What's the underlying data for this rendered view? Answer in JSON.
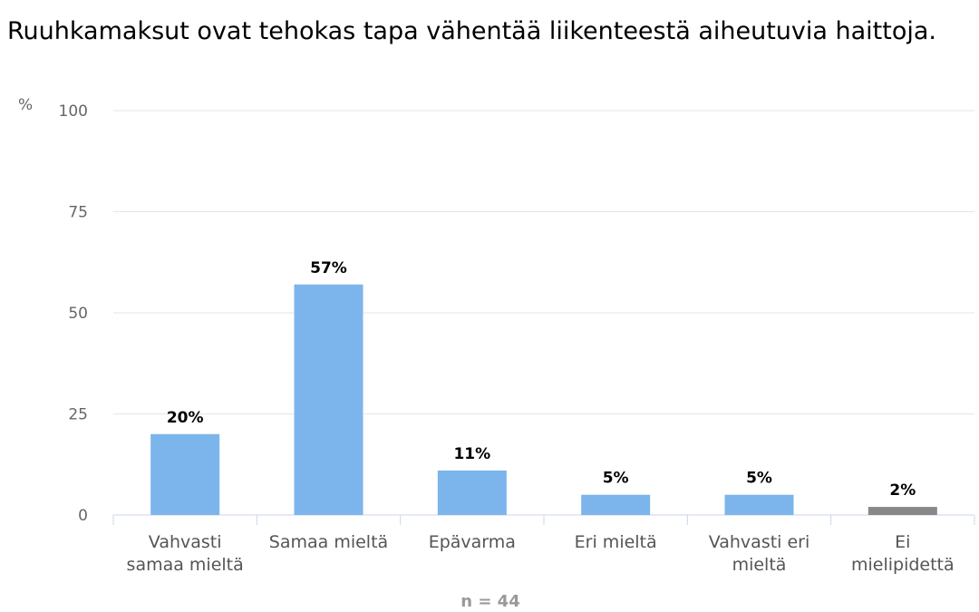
{
  "chart_data": {
    "type": "bar",
    "title": "Ruuhkamaksut ovat tehokas tapa vähentää liikenteestä aiheutuvia haittoja.",
    "ylabel": "%",
    "ylim": [
      0,
      100
    ],
    "yticks": [
      0,
      25,
      50,
      75,
      100
    ],
    "grid": true,
    "categories": [
      "Vahvasti samaa mieltä",
      "Samaa mieltä",
      "Epävarma",
      "Eri mieltä",
      "Vahvasti eri mieltä",
      "Ei mielipidettä"
    ],
    "values": [
      20,
      57,
      11,
      5,
      5,
      2
    ],
    "data_labels": [
      "20%",
      "57%",
      "11%",
      "5%",
      "5%",
      "2%"
    ],
    "bar_colors": [
      "#7cb5ec",
      "#7cb5ec",
      "#7cb5ec",
      "#7cb5ec",
      "#7cb5ec",
      "#888888"
    ],
    "footnote": "n = 44"
  }
}
